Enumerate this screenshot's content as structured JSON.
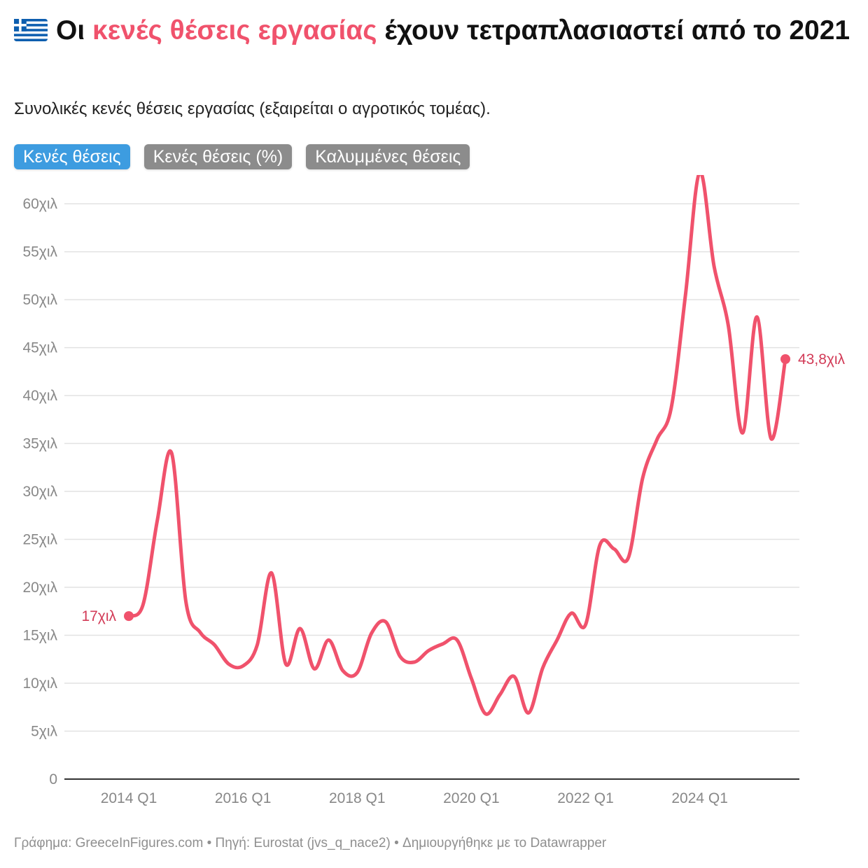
{
  "header": {
    "title_pre": "Οι ",
    "title_highlight": "κενές θέσεις εργασίας",
    "title_post": " έχουν τετραπλασιαστεί από το 2021",
    "subtitle": "Συνολικές κενές θέσεις εργασίας (εξαιρείται ο αγροτικός τομέας)."
  },
  "tabs": [
    {
      "label": "Κενές θέσεις",
      "active": true
    },
    {
      "label": "Κενές θέσεις (%)",
      "active": false
    },
    {
      "label": "Καλυμμένες θέσεις",
      "active": false
    }
  ],
  "footer": {
    "text": "Γράφημα: GreeceInFigures.com • Πηγή: Eurostat (jvs_q_nace2) • Δημιουργήθηκε με το Datawrapper"
  },
  "colors": {
    "line": "#f0526c",
    "highlight": "#f0526c",
    "label": "#d23b57",
    "active_tab": "#3d9ce0",
    "inactive_tab": "#8c8c8c",
    "grid": "#e2e2e2",
    "axis_text": "#888888"
  },
  "chart_data": {
    "type": "line",
    "xlabel": "",
    "ylabel": "",
    "ylim": [
      0,
      63000
    ],
    "y_ticks": [
      {
        "value": 0,
        "label": "0"
      },
      {
        "value": 5000,
        "label": "5χιλ"
      },
      {
        "value": 10000,
        "label": "10χιλ"
      },
      {
        "value": 15000,
        "label": "15χιλ"
      },
      {
        "value": 20000,
        "label": "20χιλ"
      },
      {
        "value": 25000,
        "label": "25χιλ"
      },
      {
        "value": 30000,
        "label": "30χιλ"
      },
      {
        "value": 35000,
        "label": "35χιλ"
      },
      {
        "value": 40000,
        "label": "40χιλ"
      },
      {
        "value": 45000,
        "label": "45χιλ"
      },
      {
        "value": 50000,
        "label": "50χιλ"
      },
      {
        "value": 55000,
        "label": "55χιλ"
      },
      {
        "value": 60000,
        "label": "60χιλ"
      }
    ],
    "x_ticks": [
      "2014 Q1",
      "2016 Q1",
      "2018 Q1",
      "2020 Q1",
      "2022 Q1",
      "2024 Q1"
    ],
    "grid": true,
    "series": [
      {
        "x": [
          "2014 Q1",
          "2014 Q2",
          "2014 Q3",
          "2014 Q4",
          "2015 Q1",
          "2015 Q2",
          "2015 Q3",
          "2015 Q4",
          "2016 Q1",
          "2016 Q2",
          "2016 Q3",
          "2016 Q4",
          "2017 Q1",
          "2017 Q2",
          "2017 Q3",
          "2017 Q4",
          "2018 Q1",
          "2018 Q2",
          "2018 Q3",
          "2018 Q4",
          "2019 Q1",
          "2019 Q2",
          "2019 Q3",
          "2019 Q4",
          "2020 Q1",
          "2020 Q2",
          "2020 Q3",
          "2020 Q4",
          "2021 Q1",
          "2021 Q2",
          "2021 Q3",
          "2021 Q4",
          "2022 Q1",
          "2022 Q2",
          "2022 Q3",
          "2022 Q4",
          "2023 Q1",
          "2023 Q2",
          "2023 Q3",
          "2023 Q4",
          "2024 Q1",
          "2024 Q2",
          "2024 Q3",
          "2024 Q4",
          "2025 Q1",
          "2025 Q2",
          "2025 Q3"
        ],
        "values": [
          17000,
          18200,
          27000,
          34000,
          18500,
          15300,
          14000,
          12000,
          11800,
          14000,
          21500,
          12000,
          15700,
          11500,
          14500,
          11300,
          11100,
          15200,
          16400,
          12800,
          12200,
          13400,
          14100,
          14500,
          10500,
          6800,
          8800,
          10700,
          6900,
          11600,
          14500,
          17300,
          16100,
          24400,
          24000,
          23100,
          31400,
          35400,
          38700,
          50500,
          63300,
          53500,
          47300,
          36100,
          48200,
          35500,
          43800
        ]
      }
    ],
    "annotations": [
      {
        "x": "2014 Q1",
        "value": 17000,
        "label": "17χιλ"
      },
      {
        "x": "2025 Q3",
        "value": 43800,
        "label": "43,8χιλ"
      }
    ]
  }
}
